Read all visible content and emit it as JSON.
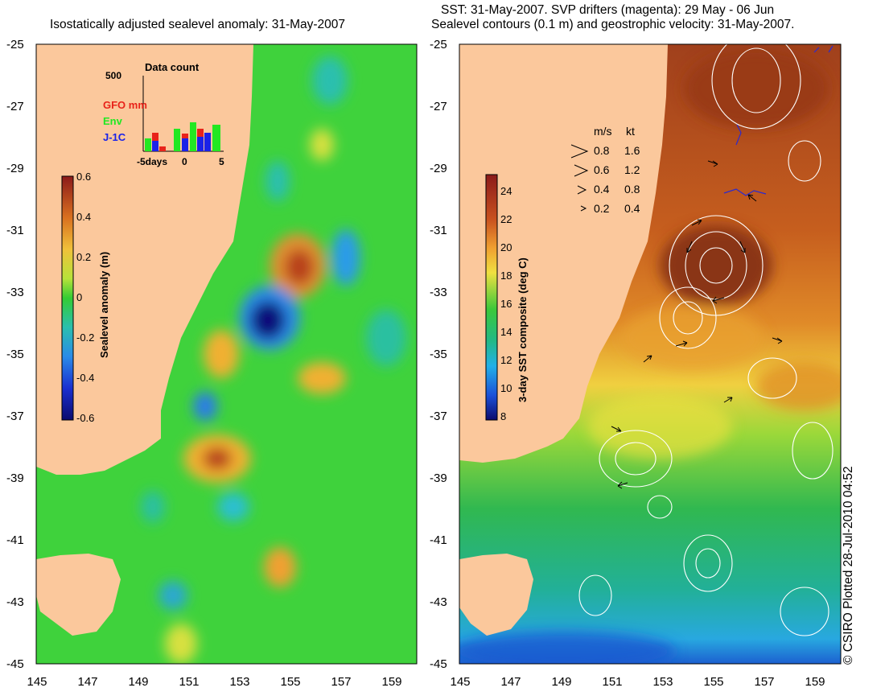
{
  "left_panel": {
    "title": "Isostatically adjusted sealevel anomaly: 31-May-2007",
    "x_ticks": [
      "145",
      "147",
      "149",
      "151",
      "153",
      "155",
      "157",
      "159"
    ],
    "y_ticks": [
      "-25",
      "-27",
      "-29",
      "-31",
      "-33",
      "-35",
      "-37",
      "-39",
      "-41",
      "-43",
      "-45"
    ],
    "colorbar": {
      "label": "Sealevel anomaly (m)",
      "ticks": [
        "0.6",
        "0.4",
        "0.2",
        "0",
        "-0.2",
        "-0.4",
        "-0.6"
      ]
    },
    "inset": {
      "title": "Data count",
      "ymax_label": "500",
      "legend": [
        {
          "label": "GFO mm",
          "color": "#e8231a"
        },
        {
          "label": "Env",
          "color": "#22e822"
        },
        {
          "label": "J-1C",
          "color": "#1a22e8"
        }
      ],
      "x_ticks": [
        "-5days",
        "0",
        "5"
      ]
    }
  },
  "right_panel": {
    "title_line1": "SST: 31-May-2007. SVP drifters (magenta): 29 May - 06 Jun",
    "title_line2": "Sealevel contours (0.1 m) and geostrophic velocity: 31-May-2007.",
    "x_ticks": [
      "145",
      "147",
      "149",
      "151",
      "153",
      "155",
      "157",
      "159"
    ],
    "y_ticks": [
      "-25",
      "-27",
      "-29",
      "-31",
      "-33",
      "-35",
      "-37",
      "-39",
      "-41",
      "-43",
      "-45"
    ],
    "colorbar": {
      "label": "3-day SST composite (deg C)",
      "ticks": [
        "24",
        "22",
        "20",
        "18",
        "16",
        "14",
        "12",
        "10",
        "8"
      ]
    },
    "velocity_legend": {
      "header_ms": "m/s",
      "header_kt": "kt",
      "rows": [
        {
          "ms": "0.8",
          "kt": "1.6"
        },
        {
          "ms": "0.6",
          "kt": "1.2"
        },
        {
          "ms": "0.4",
          "kt": "0.8"
        },
        {
          "ms": "0.2",
          "kt": "0.4"
        }
      ]
    }
  },
  "credit": "© CSIRO Plotted 28-Jul-2010 04:52",
  "colors": {
    "land": "#fbc89c",
    "sla_background": "#3fd23c",
    "sst_warm": "#c55a1e",
    "sst_cool": "#2bb0e0"
  }
}
